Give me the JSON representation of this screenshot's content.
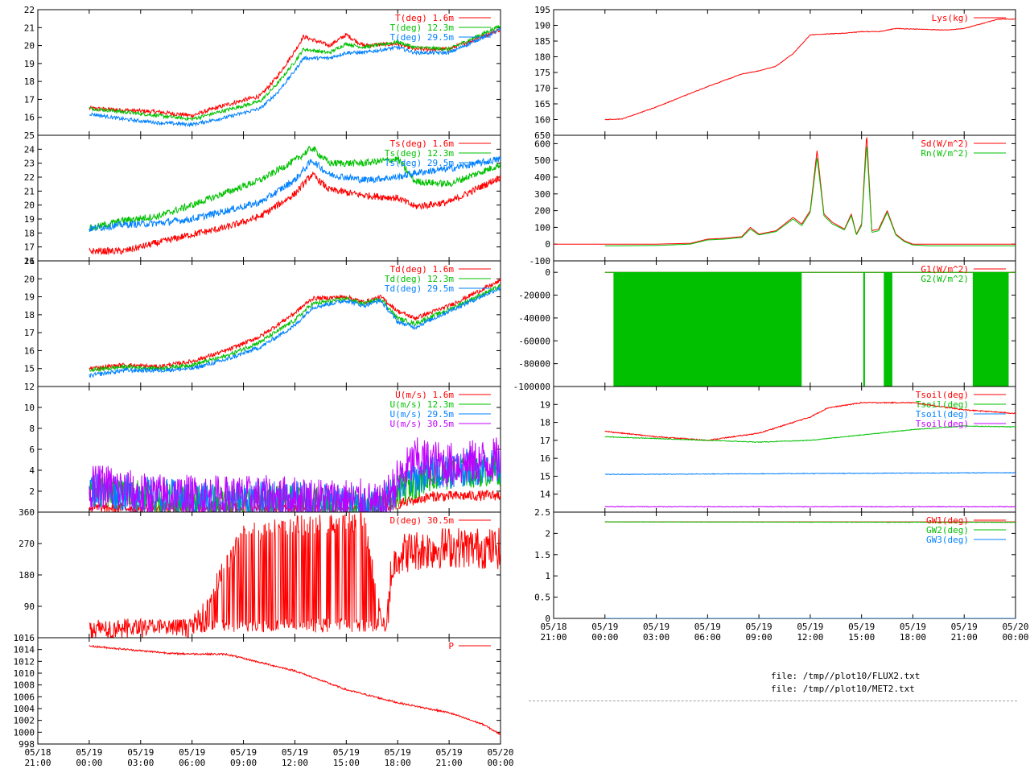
{
  "files": [
    "file: /tmp//plot10/FLUX2.txt",
    "file: /tmp//plot10/MET2.txt"
  ],
  "time_axis": {
    "ticks": [
      {
        "hours": -3,
        "label": [
          "05/18",
          "21:00"
        ]
      },
      {
        "hours": 0,
        "label": [
          "05/19",
          "00:00"
        ]
      },
      {
        "hours": 3,
        "label": [
          "05/19",
          "03:00"
        ]
      },
      {
        "hours": 6,
        "label": [
          "05/19",
          "06:00"
        ]
      },
      {
        "hours": 9,
        "label": [
          "05/19",
          "09:00"
        ]
      },
      {
        "hours": 12,
        "label": [
          "05/19",
          "12:00"
        ]
      },
      {
        "hours": 15,
        "label": [
          "05/19",
          "15:00"
        ]
      },
      {
        "hours": 18,
        "label": [
          "05/19",
          "18:00"
        ]
      },
      {
        "hours": 21,
        "label": [
          "05/19",
          "21:00"
        ]
      },
      {
        "hours": 24,
        "label": [
          "05/20",
          "00:00"
        ]
      }
    ]
  },
  "colors": {
    "red": "#ff0000",
    "green": "#00c000",
    "blue": "#0080ff",
    "purple": "#c000ff",
    "axis": "#000000",
    "grid": "#c0c0c0"
  },
  "chart_data": [
    {
      "id": "temp",
      "type": "line",
      "xlim": [
        -3,
        24
      ],
      "ylim": [
        15,
        22
      ],
      "yticks": [
        16,
        17,
        18,
        19,
        20,
        21,
        22
      ],
      "series": [
        {
          "name": "T(deg)  1.6m",
          "color": "#ff0000",
          "noise": 0.12,
          "x": [
            0,
            2,
            4,
            6,
            8,
            10,
            11,
            12,
            12.5,
            14,
            15,
            16,
            18,
            19,
            21,
            24
          ],
          "y": [
            16.5,
            16.4,
            16.3,
            16.1,
            16.7,
            17.2,
            18.3,
            19.7,
            20.5,
            20.0,
            20.6,
            20.0,
            20.1,
            19.8,
            19.8,
            20.9
          ]
        },
        {
          "name": "T(deg) 12.3m",
          "color": "#00c000",
          "noise": 0.1,
          "x": [
            0,
            2,
            4,
            6,
            8,
            10,
            11,
            12,
            12.5,
            14,
            15,
            16,
            18,
            19,
            21,
            24
          ],
          "y": [
            16.5,
            16.3,
            16.1,
            15.9,
            16.4,
            16.9,
            17.9,
            19.1,
            19.8,
            19.6,
            20.1,
            19.9,
            20.2,
            19.9,
            19.8,
            21.1
          ]
        },
        {
          "name": "T(deg) 29.5m",
          "color": "#0080ff",
          "noise": 0.1,
          "x": [
            0,
            2,
            4,
            6,
            8,
            10,
            11,
            12,
            12.5,
            14,
            15,
            16,
            18,
            19,
            21,
            24
          ],
          "y": [
            16.2,
            15.9,
            15.7,
            15.6,
            16.0,
            16.5,
            17.4,
            18.6,
            19.3,
            19.3,
            19.6,
            19.6,
            19.9,
            19.6,
            19.6,
            20.9
          ]
        }
      ]
    },
    {
      "id": "tsurf",
      "type": "line",
      "xlim": [
        -3,
        24
      ],
      "ylim": [
        16,
        25
      ],
      "yticks": [
        16,
        17,
        18,
        19,
        20,
        21,
        22,
        23,
        24,
        25
      ],
      "series": [
        {
          "name": "Ts(deg)  1.6m",
          "color": "#ff0000",
          "noise": 0.25,
          "x": [
            0,
            2,
            4,
            6,
            8,
            10,
            12,
            13,
            14,
            16,
            18,
            19,
            21,
            24
          ],
          "y": [
            16.7,
            16.7,
            17.3,
            17.9,
            18.4,
            19.2,
            20.8,
            22.2,
            21.1,
            20.7,
            20.5,
            19.9,
            20.2,
            22.0
          ]
        },
        {
          "name": "Ts(deg) 12.3m",
          "color": "#00c000",
          "noise": 0.25,
          "x": [
            0,
            2,
            4,
            6,
            8,
            10,
            12,
            13,
            14,
            16,
            18,
            19,
            21,
            24
          ],
          "y": [
            18.3,
            18.9,
            19.2,
            20.0,
            20.9,
            21.8,
            23.2,
            24.1,
            23.0,
            23.0,
            23.3,
            21.7,
            21.5,
            22.9
          ]
        },
        {
          "name": "Ts(deg) 29.5m",
          "color": "#0080ff",
          "noise": 0.25,
          "x": [
            0,
            2,
            4,
            6,
            8,
            10,
            12,
            13,
            14,
            16,
            18,
            19,
            21,
            24
          ],
          "y": [
            18.3,
            18.6,
            18.7,
            19.0,
            19.6,
            20.2,
            21.8,
            23.2,
            22.2,
            21.8,
            22.0,
            22.3,
            22.6,
            23.3
          ]
        }
      ]
    },
    {
      "id": "tdew",
      "type": "line",
      "xlim": [
        -3,
        24
      ],
      "ylim": [
        14,
        21
      ],
      "yticks": [
        15,
        16,
        17,
        18,
        19,
        20,
        21
      ],
      "series": [
        {
          "name": "Td(deg)  1.6m",
          "color": "#ff0000",
          "noise": 0.12,
          "x": [
            0,
            2,
            4,
            6,
            8,
            10,
            12,
            13,
            15,
            16,
            17,
            18,
            19,
            21,
            24
          ],
          "y": [
            15.0,
            15.2,
            15.1,
            15.4,
            16.0,
            16.8,
            18.1,
            18.9,
            19.0,
            18.7,
            19.0,
            18.2,
            17.8,
            18.5,
            19.9
          ]
        },
        {
          "name": "Td(deg) 12.3m",
          "color": "#00c000",
          "noise": 0.12,
          "x": [
            0,
            2,
            4,
            6,
            8,
            10,
            12,
            13,
            15,
            16,
            17,
            18,
            19,
            21,
            24
          ],
          "y": [
            14.9,
            15.1,
            15.0,
            15.2,
            15.7,
            16.5,
            17.7,
            18.6,
            18.9,
            18.6,
            18.9,
            17.8,
            17.5,
            18.3,
            19.6
          ]
        },
        {
          "name": "Td(deg) 29.5m",
          "color": "#0080ff",
          "noise": 0.12,
          "x": [
            0,
            2,
            4,
            6,
            8,
            10,
            12,
            13,
            15,
            16,
            17,
            18,
            19,
            21,
            24
          ],
          "y": [
            14.6,
            14.9,
            14.9,
            15.0,
            15.5,
            16.2,
            17.4,
            18.4,
            18.8,
            18.5,
            18.8,
            17.6,
            17.3,
            18.2,
            19.5
          ]
        }
      ]
    },
    {
      "id": "wind",
      "type": "line",
      "xlim": [
        -3,
        24
      ],
      "ylim": [
        0,
        12
      ],
      "yticks": [
        2,
        4,
        6,
        8,
        10,
        12
      ],
      "series": [
        {
          "name": "U(m/s)  1.6m",
          "color": "#ff0000",
          "noise": 0.5,
          "x": [
            0,
            6,
            12,
            17,
            18,
            20,
            24
          ],
          "y": [
            0.4,
            0.4,
            0.4,
            0.2,
            0.8,
            1.5,
            1.6
          ]
        },
        {
          "name": "U(m/s) 12.3m",
          "color": "#00c000",
          "noise": 1.5,
          "x": [
            0,
            6,
            12,
            17,
            18,
            20,
            24
          ],
          "y": [
            2.0,
            1.0,
            1.1,
            0.4,
            2.0,
            3.5,
            4.0
          ]
        },
        {
          "name": "U(m/s) 29.5m",
          "color": "#0080ff",
          "noise": 1.8,
          "x": [
            0,
            6,
            12,
            17,
            18,
            20,
            24
          ],
          "y": [
            2.2,
            1.2,
            1.2,
            0.5,
            2.5,
            4.0,
            4.5
          ]
        },
        {
          "name": "U(m/s) 30.5m",
          "color": "#c000ff",
          "noise": 2.2,
          "x": [
            0,
            1,
            3,
            6,
            12,
            16,
            17,
            18,
            19,
            21,
            24
          ],
          "y": [
            2.2,
            2.5,
            1.6,
            1.4,
            1.3,
            1.0,
            0.4,
            3.0,
            5.0,
            4.5,
            5.0
          ]
        }
      ]
    },
    {
      "id": "wdir",
      "type": "line",
      "xlim": [
        -3,
        24
      ],
      "ylim": [
        0,
        360
      ],
      "yticks": [
        90,
        180,
        270,
        360
      ],
      "series": [
        {
          "name": "D(deg)  30.5m",
          "color": "#ff0000",
          "noise": 60,
          "x": [
            0,
            3,
            6,
            9,
            12,
            15,
            16,
            17,
            17.3,
            17.6,
            18,
            19,
            21,
            24
          ],
          "y": [
            20,
            25,
            25,
            300,
            320,
            330,
            340,
            80,
            20,
            180,
            240,
            250,
            260,
            255
          ]
        }
      ]
    },
    {
      "id": "pressure",
      "type": "line",
      "xlim": [
        -3,
        24
      ],
      "ylim": [
        998,
        1016
      ],
      "yticks": [
        998,
        1000,
        1002,
        1004,
        1006,
        1008,
        1010,
        1012,
        1014,
        1016
      ],
      "series": [
        {
          "name": "P",
          "color": "#ff0000",
          "noise": 0.15,
          "x": [
            0,
            3,
            5,
            8,
            12,
            15,
            18,
            21,
            23,
            24
          ],
          "y": [
            1014.6,
            1013.8,
            1013.3,
            1013.2,
            1010.4,
            1007.2,
            1005.0,
            1003.3,
            1001.3,
            999.6
          ]
        }
      ]
    },
    {
      "id": "lys",
      "type": "line",
      "xlim": [
        -3,
        24
      ],
      "ylim": [
        155,
        195
      ],
      "yticks": [
        160,
        165,
        170,
        175,
        180,
        185,
        190,
        195
      ],
      "series": [
        {
          "name": "Lys(kg)",
          "color": "#ff0000",
          "noise": 0.1,
          "x": [
            0,
            1,
            3,
            6,
            8,
            9,
            10,
            11,
            12,
            14,
            15,
            16,
            17,
            20,
            21,
            23,
            24
          ],
          "y": [
            160,
            160.2,
            164,
            170.5,
            174.5,
            175.5,
            177,
            181,
            187,
            187.5,
            188,
            188,
            189,
            188.5,
            189,
            192,
            192
          ]
        }
      ]
    },
    {
      "id": "radiation",
      "type": "line",
      "xlim": [
        -3,
        24
      ],
      "ylim": [
        -100,
        650
      ],
      "yticks": [
        -100,
        0,
        100,
        200,
        300,
        400,
        500,
        600,
        650
      ],
      "series": [
        {
          "name": "Sd(W/m^2)",
          "color": "#ff0000",
          "noise": 0,
          "x": [
            -3,
            0,
            3,
            5,
            6,
            7,
            8,
            8.5,
            9,
            10,
            11,
            11.5,
            12,
            12.4,
            12.8,
            13.3,
            14,
            14.4,
            14.7,
            15,
            15.3,
            15.6,
            16,
            16.5,
            17,
            17.5,
            18,
            19,
            24
          ],
          "y": [
            0,
            0,
            0,
            5,
            30,
            35,
            45,
            100,
            60,
            80,
            160,
            120,
            200,
            560,
            180,
            130,
            90,
            180,
            60,
            120,
            660,
            80,
            90,
            200,
            60,
            20,
            0,
            0,
            0
          ]
        },
        {
          "name": "Rn(W/m^2)",
          "color": "#00c000",
          "noise": 0,
          "x": [
            0,
            3,
            5,
            6,
            7,
            8,
            8.5,
            9,
            10,
            11,
            11.5,
            12,
            12.4,
            12.8,
            13.3,
            14,
            14.4,
            14.7,
            15,
            15.3,
            15.6,
            16,
            16.5,
            17,
            17.5,
            18,
            19,
            24
          ],
          "y": [
            -10,
            -8,
            0,
            25,
            30,
            40,
            90,
            55,
            75,
            150,
            110,
            190,
            520,
            170,
            120,
            85,
            170,
            55,
            110,
            600,
            70,
            80,
            190,
            55,
            15,
            -5,
            -10,
            -10
          ]
        }
      ]
    },
    {
      "id": "soilflux",
      "type": "line",
      "xlim": [
        -3,
        24
      ],
      "ylim": [
        -100000,
        10000
      ],
      "yticks": [
        -100000,
        -80000,
        -60000,
        -40000,
        -20000,
        0
      ],
      "series": [
        {
          "name": "G1(W/m^2)",
          "color": "#ff0000",
          "noise": 0,
          "x": [
            0,
            24
          ],
          "y": [
            0,
            0
          ]
        },
        {
          "name": "G2(W/m^2)",
          "color": "#00c000",
          "noise": 0,
          "x": [
            0,
            24
          ],
          "y": [
            0,
            0
          ],
          "bands": [
            [
              0.5,
              11.5
            ],
            [
              15.1,
              15.2
            ],
            [
              16.3,
              16.8
            ],
            [
              21.5,
              23.6
            ]
          ]
        }
      ]
    },
    {
      "id": "tsoil",
      "type": "line",
      "xlim": [
        -3,
        24
      ],
      "ylim": [
        13,
        20
      ],
      "yticks": [
        14,
        15,
        16,
        17,
        18,
        19
      ],
      "series": [
        {
          "name": "Tsoil(deg)",
          "color": "#ff0000",
          "noise": 0.03,
          "x": [
            0,
            3,
            6,
            9,
            12,
            13,
            15,
            18,
            21,
            24
          ],
          "y": [
            17.5,
            17.2,
            17.0,
            17.4,
            18.3,
            18.8,
            19.1,
            19.1,
            18.7,
            18.5
          ]
        },
        {
          "name": "Tsoil(deg)",
          "color": "#00c000",
          "noise": 0.02,
          "x": [
            0,
            6,
            9,
            12,
            15,
            18,
            21,
            24
          ],
          "y": [
            17.2,
            17.0,
            16.9,
            17.0,
            17.3,
            17.6,
            17.8,
            17.75
          ]
        },
        {
          "name": "Tsoil(deg)",
          "color": "#0080ff",
          "noise": 0.02,
          "x": [
            0,
            24
          ],
          "y": [
            15.1,
            15.2
          ]
        },
        {
          "name": "Tsoil(deg)",
          "color": "#c000ff",
          "noise": 0.02,
          "x": [
            0,
            24
          ],
          "y": [
            13.3,
            13.3
          ]
        }
      ]
    },
    {
      "id": "groundwater",
      "type": "line",
      "xlim": [
        -3,
        24
      ],
      "ylim": [
        0,
        2.5
      ],
      "yticks": [
        0,
        0.5,
        1,
        1.5,
        2,
        2.5
      ],
      "series": [
        {
          "name": "GW1(deg)",
          "color": "#ff0000",
          "noise": 0,
          "x": [
            0,
            24
          ],
          "y": [
            2.27,
            2.27
          ]
        },
        {
          "name": "GW2(deg)",
          "color": "#00c000",
          "noise": 0.005,
          "x": [
            0,
            24
          ],
          "y": [
            2.27,
            2.26
          ]
        },
        {
          "name": "GW3(deg)",
          "color": "#0080ff",
          "noise": 0,
          "x": [
            0,
            24
          ],
          "y": [
            0,
            0
          ]
        }
      ]
    }
  ]
}
